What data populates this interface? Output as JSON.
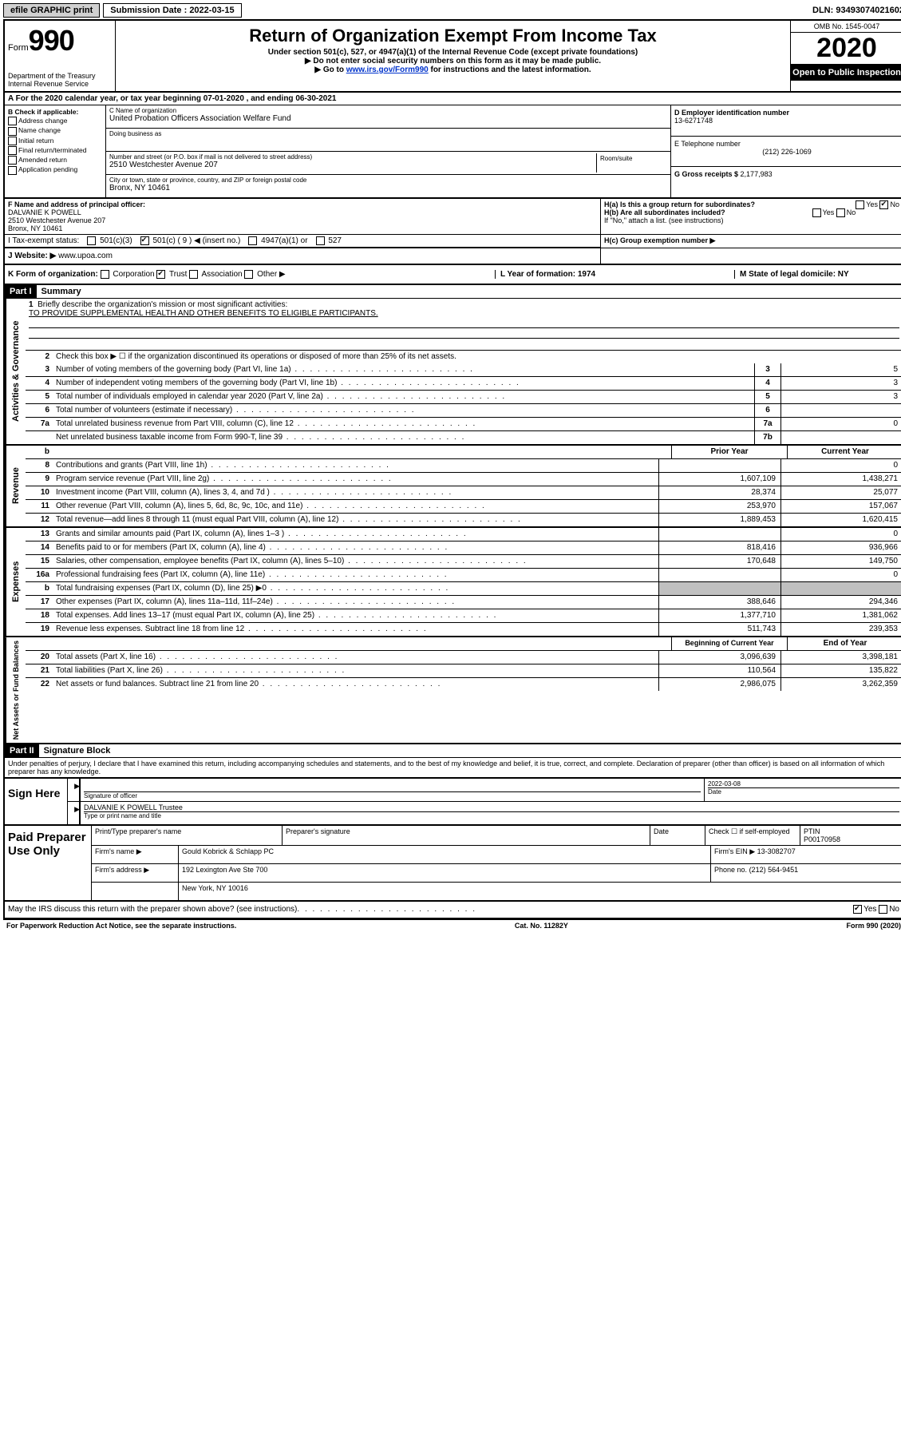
{
  "topbar": {
    "efile": "efile GRAPHIC print",
    "sub_label": "Submission Date : 2022-03-15",
    "dln": "DLN: 93493074021602"
  },
  "header": {
    "form_word": "Form",
    "form_num": "990",
    "dept": "Department of the Treasury Internal Revenue Service",
    "title": "Return of Organization Exempt From Income Tax",
    "sub1": "Under section 501(c), 527, or 4947(a)(1) of the Internal Revenue Code (except private foundations)",
    "sub2": "▶ Do not enter social security numbers on this form as it may be made public.",
    "sub3_pre": "▶ Go to ",
    "sub3_link": "www.irs.gov/Form990",
    "sub3_post": " for instructions and the latest information.",
    "omb": "OMB No. 1545-0047",
    "year": "2020",
    "open": "Open to Public Inspection"
  },
  "row_a": "A For the 2020 calendar year, or tax year beginning 07-01-2020    , and ending 06-30-2021",
  "col_b": {
    "label": "B Check if applicable:",
    "opts": [
      "Address change",
      "Name change",
      "Initial return",
      "Final return/terminated",
      "Amended return",
      "Application pending"
    ]
  },
  "col_c": {
    "name_label": "C Name of organization",
    "name": "United Probation Officers Association Welfare Fund",
    "dba_label": "Doing business as",
    "street_label": "Number and street (or P.O. box if mail is not delivered to street address)",
    "street": "2510 Westchester Avenue 207",
    "room_label": "Room/suite",
    "city_label": "City or town, state or province, country, and ZIP or foreign postal code",
    "city": "Bronx, NY  10461"
  },
  "col_d": {
    "ein_label": "D Employer identification number",
    "ein": "13-6271748",
    "phone_label": "E Telephone number",
    "phone": "(212) 226-1069",
    "gross_label": "G Gross receipts $ ",
    "gross": "2,177,983"
  },
  "officer": {
    "label": "F  Name and address of principal officer:",
    "name": "DALVANIE K POWELL",
    "addr": "2510 Westchester Avenue 207",
    "city": "Bronx, NY  10461"
  },
  "h": {
    "a": "H(a)  Is this a group return for subordinates?",
    "b": "H(b)  Are all subordinates included?",
    "b_note": "If \"No,\" attach a list. (see instructions)",
    "c": "H(c)  Group exemption number ▶",
    "yes": "Yes",
    "no": "No"
  },
  "i": {
    "label": "I  Tax-exempt status:",
    "opts": [
      "501(c)(3)",
      "501(c) ( 9 ) ◀ (insert no.)",
      "4947(a)(1) or",
      "527"
    ]
  },
  "j": {
    "label": "J   Website: ▶",
    "value": "www.upoa.com"
  },
  "k": {
    "label": "K Form of organization:",
    "opts": [
      "Corporation",
      "Trust",
      "Association",
      "Other ▶"
    ],
    "l": "L Year of formation: 1974",
    "m": "M State of legal domicile: NY"
  },
  "part1": {
    "header": "Part I",
    "title": "Summary",
    "q1": "Briefly describe the organization's mission or most significant activities:",
    "mission": "TO PROVIDE SUPPLEMENTAL HEALTH AND OTHER BENEFITS TO ELIGIBLE PARTICIPANTS.",
    "q2": "Check this box ▶ ☐  if the organization discontinued its operations or disposed of more than 25% of its net assets.",
    "lines": [
      {
        "n": "3",
        "t": "Number of voting members of the governing body (Part VI, line 1a)",
        "c": "3",
        "v": "5"
      },
      {
        "n": "4",
        "t": "Number of independent voting members of the governing body (Part VI, line 1b)",
        "c": "4",
        "v": "3"
      },
      {
        "n": "5",
        "t": "Total number of individuals employed in calendar year 2020 (Part V, line 2a)",
        "c": "5",
        "v": "3"
      },
      {
        "n": "6",
        "t": "Total number of volunteers (estimate if necessary)",
        "c": "6",
        "v": ""
      },
      {
        "n": "7a",
        "t": "Total unrelated business revenue from Part VIII, column (C), line 12",
        "c": "7a",
        "v": "0"
      },
      {
        "n": "",
        "t": "Net unrelated business taxable income from Form 990-T, line 39",
        "c": "7b",
        "v": ""
      }
    ]
  },
  "revenue": {
    "side": "Revenue",
    "head_prior": "Prior Year",
    "head_curr": "Current Year",
    "rows": [
      {
        "n": "8",
        "t": "Contributions and grants (Part VIII, line 1h)",
        "p": "",
        "c": "0"
      },
      {
        "n": "9",
        "t": "Program service revenue (Part VIII, line 2g)",
        "p": "1,607,109",
        "c": "1,438,271"
      },
      {
        "n": "10",
        "t": "Investment income (Part VIII, column (A), lines 3, 4, and 7d )",
        "p": "28,374",
        "c": "25,077"
      },
      {
        "n": "11",
        "t": "Other revenue (Part VIII, column (A), lines 5, 6d, 8c, 9c, 10c, and 11e)",
        "p": "253,970",
        "c": "157,067"
      },
      {
        "n": "12",
        "t": "Total revenue—add lines 8 through 11 (must equal Part VIII, column (A), line 12)",
        "p": "1,889,453",
        "c": "1,620,415"
      }
    ]
  },
  "expenses": {
    "side": "Expenses",
    "rows": [
      {
        "n": "13",
        "t": "Grants and similar amounts paid (Part IX, column (A), lines 1–3 )",
        "p": "",
        "c": "0"
      },
      {
        "n": "14",
        "t": "Benefits paid to or for members (Part IX, column (A), line 4)",
        "p": "818,416",
        "c": "936,966"
      },
      {
        "n": "15",
        "t": "Salaries, other compensation, employee benefits (Part IX, column (A), lines 5–10)",
        "p": "170,648",
        "c": "149,750"
      },
      {
        "n": "16a",
        "t": "Professional fundraising fees (Part IX, column (A), line 11e)",
        "p": "",
        "c": "0"
      },
      {
        "n": "b",
        "t": "Total fundraising expenses (Part IX, column (D), line 25) ▶0",
        "p": "",
        "c": "",
        "shaded": true
      },
      {
        "n": "17",
        "t": "Other expenses (Part IX, column (A), lines 11a–11d, 11f–24e)",
        "p": "388,646",
        "c": "294,346"
      },
      {
        "n": "18",
        "t": "Total expenses. Add lines 13–17 (must equal Part IX, column (A), line 25)",
        "p": "1,377,710",
        "c": "1,381,062"
      },
      {
        "n": "19",
        "t": "Revenue less expenses. Subtract line 18 from line 12",
        "p": "511,743",
        "c": "239,353"
      }
    ]
  },
  "netassets": {
    "side": "Net Assets or Fund Balances",
    "head_beg": "Beginning of Current Year",
    "head_end": "End of Year",
    "rows": [
      {
        "n": "20",
        "t": "Total assets (Part X, line 16)",
        "p": "3,096,639",
        "c": "3,398,181"
      },
      {
        "n": "21",
        "t": "Total liabilities (Part X, line 26)",
        "p": "110,564",
        "c": "135,822"
      },
      {
        "n": "22",
        "t": "Net assets or fund balances. Subtract line 21 from line 20",
        "p": "2,986,075",
        "c": "3,262,359"
      }
    ]
  },
  "gov_side": "Activities & Governance",
  "part2": {
    "header": "Part II",
    "title": "Signature Block",
    "perjury": "Under penalties of perjury, I declare that I have examined this return, including accompanying schedules and statements, and to the best of my knowledge and belief, it is true, correct, and complete. Declaration of preparer (other than officer) is based on all information of which preparer has any knowledge."
  },
  "sign": {
    "here": "Sign Here",
    "sig_label": "Signature of officer",
    "date_label": "Date",
    "date": "2022-03-08",
    "name": "DALVANIE K POWELL  Trustee",
    "name_label": "Type or print name and title"
  },
  "paid": {
    "label": "Paid Preparer Use Only",
    "h1": "Print/Type preparer's name",
    "h2": "Preparer's signature",
    "h3": "Date",
    "h4_pre": "Check ☐ if self-employed",
    "h5": "PTIN",
    "ptin": "P00170958",
    "firm_name_label": "Firm's name     ▶",
    "firm_name": "Gould Kobrick & Schlapp PC",
    "firm_ein_label": "Firm's EIN ▶",
    "firm_ein": "13-3082707",
    "firm_addr_label": "Firm's address ▶",
    "firm_addr1": "192 Lexington Ave Ste 700",
    "firm_addr2": "New York, NY  10016",
    "phone_label": "Phone no.",
    "phone": "(212) 564-9451"
  },
  "discuss": "May the IRS discuss this return with the preparer shown above? (see instructions)",
  "footer": {
    "left": "For Paperwork Reduction Act Notice, see the separate instructions.",
    "mid": "Cat. No. 11282Y",
    "right": "Form 990 (2020)"
  }
}
